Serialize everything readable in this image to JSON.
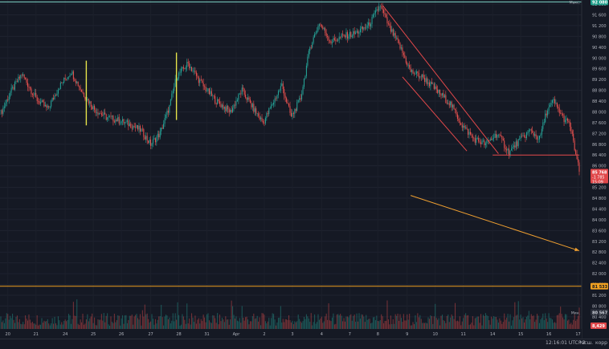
{
  "chart_data": {
    "type": "candlestick",
    "x_labels": [
      "20",
      "21",
      "24",
      "25",
      "26",
      "27",
      "28",
      "31",
      "Apr",
      "2",
      "3",
      "4",
      "7",
      "8",
      "9",
      "10",
      "11",
      "14",
      "15",
      "16",
      "17"
    ],
    "y_ticks": [
      92000,
      91600,
      91200,
      90800,
      90400,
      90000,
      89600,
      89200,
      88800,
      88400,
      88000,
      87600,
      87200,
      86800,
      86400,
      86000,
      85600,
      85200,
      84800,
      84400,
      84000,
      83600,
      83200,
      82800,
      82400,
      82000,
      81600,
      81200,
      80800,
      80400
    ],
    "y_tick_labels": [
      "92 000",
      "91 600",
      "91 200",
      "90 800",
      "90 400",
      "90 000",
      "89 600",
      "89 200",
      "88 800",
      "88 400",
      "88 000",
      "87 600",
      "87 200",
      "86 800",
      "86 400",
      "86 000",
      "85 600",
      "85 200",
      "84 800",
      "84 400",
      "84 000",
      "83 600",
      "83 200",
      "82 800",
      "82 400",
      "82 000",
      "81 600",
      "81 200",
      "80 800",
      "80 400"
    ],
    "ylim": [
      79950,
      92150
    ],
    "horizontal_levels": [
      {
        "label": "Макс.",
        "value": 92080,
        "price_text": "92 080",
        "color": "#7fd6c8"
      },
      {
        "label": "",
        "value": 81533,
        "price_text": "81 533",
        "color": "#f0a020"
      },
      {
        "label": "Мин.",
        "value": 80567,
        "price_text": "80 567",
        "color": "#b2b5be"
      }
    ],
    "current_price": {
      "value": 85768,
      "price_text": "85 768",
      "change_text": "-1 785",
      "countdown_text": "15:09"
    },
    "volume_label": "8,429",
    "anchors": [
      {
        "bar": 0,
        "price": 87950
      },
      {
        "bar": 8,
        "price": 88700
      },
      {
        "bar": 18,
        "price": 89400
      },
      {
        "bar": 30,
        "price": 88500
      },
      {
        "bar": 40,
        "price": 88100
      },
      {
        "bar": 50,
        "price": 88950
      },
      {
        "bar": 60,
        "price": 89500
      },
      {
        "bar": 70,
        "price": 88700
      },
      {
        "bar": 80,
        "price": 88100
      },
      {
        "bar": 90,
        "price": 87800
      },
      {
        "bar": 100,
        "price": 87700
      },
      {
        "bar": 112,
        "price": 87500
      },
      {
        "bar": 120,
        "price": 87300
      },
      {
        "bar": 128,
        "price": 86800
      },
      {
        "bar": 136,
        "price": 87200
      },
      {
        "bar": 144,
        "price": 88200
      },
      {
        "bar": 150,
        "price": 89300
      },
      {
        "bar": 160,
        "price": 89800
      },
      {
        "bar": 172,
        "price": 89000
      },
      {
        "bar": 184,
        "price": 88400
      },
      {
        "bar": 196,
        "price": 88000
      },
      {
        "bar": 206,
        "price": 88800
      },
      {
        "bar": 216,
        "price": 88100
      },
      {
        "bar": 224,
        "price": 87600
      },
      {
        "bar": 232,
        "price": 88300
      },
      {
        "bar": 240,
        "price": 89000
      },
      {
        "bar": 248,
        "price": 87800
      },
      {
        "bar": 256,
        "price": 88500
      },
      {
        "bar": 264,
        "price": 90400
      },
      {
        "bar": 272,
        "price": 91300
      },
      {
        "bar": 282,
        "price": 90600
      },
      {
        "bar": 292,
        "price": 90800
      },
      {
        "bar": 302,
        "price": 90900
      },
      {
        "bar": 314,
        "price": 91200
      },
      {
        "bar": 324,
        "price": 91950
      },
      {
        "bar": 332,
        "price": 91100
      },
      {
        "bar": 340,
        "price": 90500
      },
      {
        "bar": 350,
        "price": 89500
      },
      {
        "bar": 360,
        "price": 89300
      },
      {
        "bar": 372,
        "price": 88800
      },
      {
        "bar": 384,
        "price": 88300
      },
      {
        "bar": 394,
        "price": 87500
      },
      {
        "bar": 404,
        "price": 87000
      },
      {
        "bar": 414,
        "price": 86800
      },
      {
        "bar": 424,
        "price": 87200
      },
      {
        "bar": 434,
        "price": 86500
      },
      {
        "bar": 442,
        "price": 86900
      },
      {
        "bar": 452,
        "price": 87300
      },
      {
        "bar": 460,
        "price": 87000
      },
      {
        "bar": 466,
        "price": 88000
      },
      {
        "bar": 472,
        "price": 88400
      },
      {
        "bar": 480,
        "price": 87800
      },
      {
        "bar": 486,
        "price": 87500
      },
      {
        "bar": 494,
        "price": 85800
      }
    ],
    "bar_count": 495,
    "drawings": [
      {
        "type": "channel-line",
        "from": {
          "bar": 326,
          "price": 91950
        },
        "to": {
          "bar": 425,
          "price": 86450
        }
      },
      {
        "type": "channel-line",
        "from": {
          "bar": 343,
          "price": 89300
        },
        "to": {
          "bar": 398,
          "price": 86550
        }
      },
      {
        "type": "horizontal-segment",
        "from": {
          "bar": 420,
          "price": 86400
        },
        "to": {
          "bar": 494,
          "price": 86400
        }
      },
      {
        "type": "arrow",
        "from": {
          "bar": 350,
          "price": 84900
        },
        "to": {
          "bar": 494,
          "price": 82850
        }
      }
    ],
    "marker_bars": [
      {
        "bar": 73,
        "low": 87500,
        "high": 89900
      },
      {
        "bar": 150,
        "low": 87700,
        "high": 90200
      }
    ]
  },
  "bottom_bar": {
    "time": "12:16:01 UTC+3",
    "session": "Расш.",
    "extra": "корр"
  }
}
